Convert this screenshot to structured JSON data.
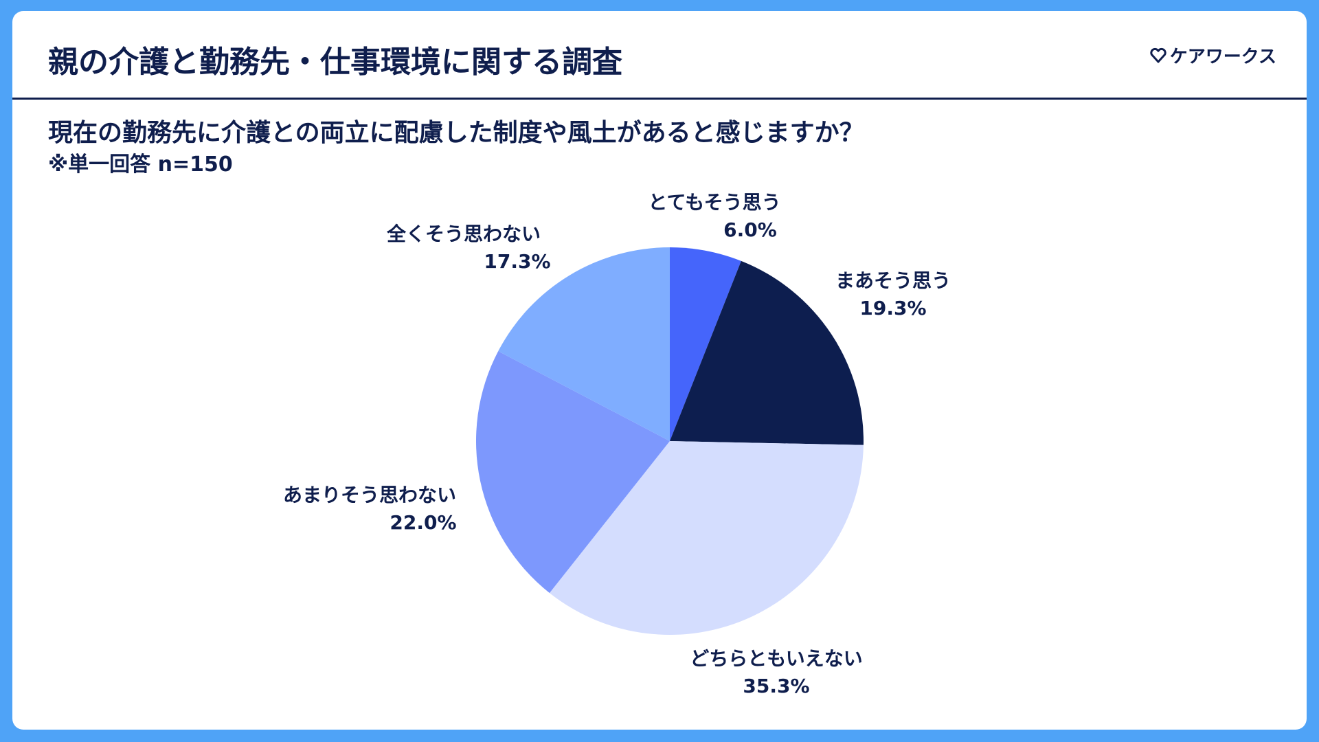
{
  "header": {
    "title": "親の介護と勤務先・仕事環境に関する調査",
    "logo_text": "ケアワークス",
    "logo_icon": "heart-icon"
  },
  "question": "現在の勤務先に介護との両立に配慮した制度や風土があると感じますか？",
  "note": "※単一回答 n=150",
  "chart_data": {
    "type": "pie",
    "title": "",
    "start_angle_deg": 0,
    "direction": "clockwise",
    "slices": [
      {
        "label": "とてもそう思う",
        "value": 6.0,
        "value_text": "6.0%",
        "color": "#4565fb"
      },
      {
        "label": "まあそう思う",
        "value": 19.3,
        "value_text": "19.3%",
        "color": "#0d1e4f"
      },
      {
        "label": "どちらともいえない",
        "value": 35.3,
        "value_text": "35.3%",
        "color": "#d4ddfe"
      },
      {
        "label": "あまりそう思わない",
        "value": 22.0,
        "value_text": "22.0%",
        "color": "#7d98fd"
      },
      {
        "label": "全くそう思わない",
        "value": 17.3,
        "value_text": "17.3%",
        "color": "#7fadff"
      }
    ]
  }
}
